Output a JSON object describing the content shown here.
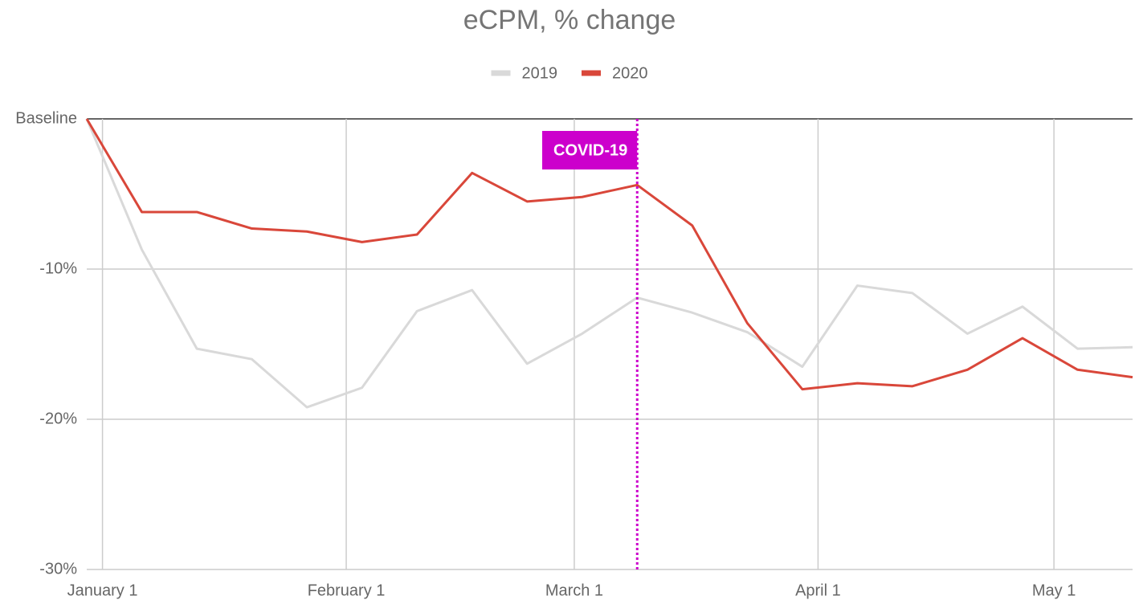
{
  "chart_data": {
    "type": "line",
    "title": "eCPM, % change",
    "x": [
      -2,
      5,
      12,
      19,
      26,
      33,
      40,
      47,
      54,
      61,
      68,
      75,
      82,
      89,
      96,
      103,
      110,
      117,
      124,
      131
    ],
    "series": [
      {
        "name": "2019",
        "color": "#d9d9d9",
        "values": [
          0,
          -8.7,
          -15.3,
          -16.0,
          -19.2,
          -17.9,
          -12.8,
          -11.4,
          -16.3,
          -14.3,
          -11.9,
          -12.9,
          -14.2,
          -16.5,
          -11.1,
          -11.6,
          -14.3,
          -12.5,
          -15.3,
          -15.2
        ]
      },
      {
        "name": "2020",
        "color": "#d9473a",
        "values": [
          0,
          -6.2,
          -6.2,
          -7.3,
          -7.5,
          -8.2,
          -7.7,
          -3.6,
          -5.5,
          -5.2,
          -4.4,
          -7.1,
          -13.6,
          -18.0,
          -17.6,
          -17.8,
          -16.7,
          -14.6,
          -16.7,
          -17.2
        ]
      }
    ],
    "xlim": [
      -2,
      131
    ],
    "xticks": [
      {
        "value": 0,
        "label": "January 1"
      },
      {
        "value": 31,
        "label": "February 1"
      },
      {
        "value": 60,
        "label": "March 1"
      },
      {
        "value": 91,
        "label": "April 1"
      },
      {
        "value": 121,
        "label": "May 1"
      }
    ],
    "ylim": [
      -30,
      0
    ],
    "yticks": [
      {
        "value": 0,
        "label": "Baseline"
      },
      {
        "value": -10,
        "label": "-10%"
      },
      {
        "value": -20,
        "label": "-20%"
      },
      {
        "value": -30,
        "label": "-30%"
      }
    ],
    "grid": true,
    "legend": "top",
    "annotations": [
      {
        "text": "COVID-19",
        "x": 68,
        "color": "#cc00cc"
      }
    ]
  }
}
